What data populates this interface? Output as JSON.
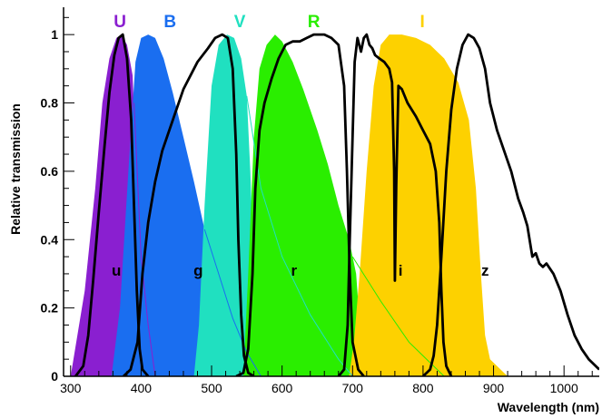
{
  "chart_data": {
    "type": "area",
    "title": "",
    "xlabel": "Wavelength (nm)",
    "ylabel": "Relative transmission",
    "xlim": [
      290,
      1050
    ],
    "ylim": [
      0,
      1.08
    ],
    "x_ticks": [
      300,
      400,
      500,
      600,
      700,
      800,
      900,
      1000
    ],
    "x_tick_labels": [
      "300",
      "400",
      "500",
      "600",
      "700",
      "800",
      "900",
      "1000"
    ],
    "y_ticks": [
      0,
      0.2,
      0.4,
      0.6,
      0.8,
      1
    ],
    "y_tick_labels": [
      "0",
      "0.2",
      "0.4",
      "0.6",
      "0.8",
      "1"
    ],
    "grid": false,
    "filled_series": [
      {
        "name": "U",
        "color": "#8a1fd0",
        "label_at": [
          370,
          1.04
        ],
        "points": [
          [
            300,
            0
          ],
          [
            320,
            0.25
          ],
          [
            335,
            0.55
          ],
          [
            345,
            0.8
          ],
          [
            355,
            0.93
          ],
          [
            365,
            0.99
          ],
          [
            372,
            1.0
          ],
          [
            380,
            0.97
          ],
          [
            388,
            0.88
          ],
          [
            393,
            0.6
          ],
          [
            397,
            0.3
          ],
          [
            402,
            0.08
          ],
          [
            408,
            0
          ]
        ],
        "tail": [
          [
            390,
            0.8
          ],
          [
            400,
            0.35
          ],
          [
            410,
            0.15
          ],
          [
            420,
            0
          ]
        ]
      },
      {
        "name": "B",
        "color": "#1a6ef0",
        "label_at": [
          441,
          1.04
        ],
        "points": [
          [
            358,
            0
          ],
          [
            370,
            0.2
          ],
          [
            382,
            0.6
          ],
          [
            392,
            0.92
          ],
          [
            400,
            0.99
          ],
          [
            410,
            1.0
          ],
          [
            420,
            0.99
          ],
          [
            432,
            0.93
          ],
          [
            445,
            0.83
          ],
          [
            460,
            0.7
          ],
          [
            475,
            0.57
          ],
          [
            490,
            0.43
          ],
          [
            500,
            0.33
          ],
          [
            505,
            0.2
          ],
          [
            510,
            0
          ]
        ],
        "tail": [
          [
            490,
            0.43
          ],
          [
            510,
            0.3
          ],
          [
            530,
            0.17
          ],
          [
            550,
            0.07
          ],
          [
            570,
            0
          ]
        ]
      },
      {
        "name": "V",
        "color": "#20e0c0",
        "label_at": [
          540,
          1.04
        ],
        "points": [
          [
            475,
            0
          ],
          [
            482,
            0.15
          ],
          [
            490,
            0.5
          ],
          [
            500,
            0.85
          ],
          [
            510,
            0.97
          ],
          [
            522,
            1.0
          ],
          [
            532,
            0.99
          ],
          [
            542,
            0.93
          ],
          [
            550,
            0.82
          ],
          [
            555,
            0.6
          ],
          [
            560,
            0.3
          ],
          [
            565,
            0.08
          ],
          [
            570,
            0
          ]
        ],
        "tail": [
          [
            550,
            0.82
          ],
          [
            570,
            0.55
          ],
          [
            600,
            0.35
          ],
          [
            640,
            0.18
          ],
          [
            680,
            0.05
          ],
          [
            700,
            0
          ]
        ]
      },
      {
        "name": "R",
        "color": "#2aee00",
        "label_at": [
          645,
          1.04
        ],
        "points": [
          [
            545,
            0
          ],
          [
            552,
            0.3
          ],
          [
            560,
            0.7
          ],
          [
            568,
            0.9
          ],
          [
            578,
            0.97
          ],
          [
            590,
            1.0
          ],
          [
            600,
            0.98
          ],
          [
            615,
            0.92
          ],
          [
            630,
            0.84
          ],
          [
            650,
            0.72
          ],
          [
            665,
            0.62
          ],
          [
            680,
            0.5
          ],
          [
            695,
            0.4
          ],
          [
            705,
            0.3
          ],
          [
            712,
            0.1
          ],
          [
            716,
            0
          ]
        ],
        "tail": [
          [
            700,
            0.35
          ],
          [
            740,
            0.22
          ],
          [
            780,
            0.1
          ],
          [
            820,
            0.02
          ],
          [
            830,
            0
          ]
        ]
      },
      {
        "name": "I",
        "color": "#fdd100",
        "label_at": [
          799,
          1.04
        ],
        "points": [
          [
            695,
            0
          ],
          [
            702,
            0.1
          ],
          [
            710,
            0.3
          ],
          [
            720,
            0.6
          ],
          [
            730,
            0.85
          ],
          [
            740,
            0.97
          ],
          [
            752,
            1.0
          ],
          [
            770,
            1.0
          ],
          [
            790,
            0.99
          ],
          [
            810,
            0.97
          ],
          [
            830,
            0.93
          ],
          [
            850,
            0.86
          ],
          [
            865,
            0.75
          ],
          [
            875,
            0.55
          ],
          [
            882,
            0.3
          ],
          [
            888,
            0.12
          ],
          [
            895,
            0.05
          ],
          [
            910,
            0.02
          ],
          [
            920,
            0
          ]
        ],
        "tail": []
      }
    ],
    "curve_series": [
      {
        "name": "u",
        "color": "#000000",
        "label_at": [
          365,
          0.31
        ],
        "points": [
          [
            307,
            0
          ],
          [
            318,
            0.03
          ],
          [
            325,
            0.12
          ],
          [
            332,
            0.28
          ],
          [
            340,
            0.48
          ],
          [
            348,
            0.67
          ],
          [
            355,
            0.83
          ],
          [
            362,
            0.94
          ],
          [
            368,
            0.99
          ],
          [
            374,
            1.0
          ],
          [
            380,
            0.93
          ],
          [
            386,
            0.75
          ],
          [
            390,
            0.5
          ],
          [
            394,
            0.25
          ],
          [
            398,
            0.08
          ],
          [
            402,
            0.02
          ],
          [
            410,
            0
          ]
        ]
      },
      {
        "name": "g",
        "color": "#000000",
        "label_at": [
          481,
          0.31
        ],
        "points": [
          [
            375,
            0
          ],
          [
            385,
            0.02
          ],
          [
            395,
            0.1
          ],
          [
            402,
            0.3
          ],
          [
            410,
            0.45
          ],
          [
            420,
            0.57
          ],
          [
            430,
            0.66
          ],
          [
            445,
            0.75
          ],
          [
            460,
            0.84
          ],
          [
            480,
            0.92
          ],
          [
            495,
            0.96
          ],
          [
            505,
            0.99
          ],
          [
            515,
            1.0
          ],
          [
            523,
            0.99
          ],
          [
            530,
            0.9
          ],
          [
            535,
            0.65
          ],
          [
            538,
            0.4
          ],
          [
            542,
            0.18
          ],
          [
            546,
            0.06
          ],
          [
            552,
            0.01
          ],
          [
            560,
            0
          ]
        ]
      },
      {
        "name": "r",
        "color": "#000000",
        "label_at": [
          617,
          0.31
        ],
        "points": [
          [
            535,
            0
          ],
          [
            545,
            0.01
          ],
          [
            552,
            0.08
          ],
          [
            558,
            0.3
          ],
          [
            562,
            0.55
          ],
          [
            568,
            0.72
          ],
          [
            575,
            0.8
          ],
          [
            585,
            0.87
          ],
          [
            595,
            0.93
          ],
          [
            605,
            0.97
          ],
          [
            615,
            0.98
          ],
          [
            625,
            0.98
          ],
          [
            635,
            0.99
          ],
          [
            645,
            1.0
          ],
          [
            660,
            1.0
          ],
          [
            670,
            0.99
          ],
          [
            680,
            0.97
          ],
          [
            688,
            0.85
          ],
          [
            692,
            0.6
          ],
          [
            696,
            0.3
          ],
          [
            700,
            0.1
          ],
          [
            708,
            0.02
          ],
          [
            716,
            0
          ]
        ]
      },
      {
        "name": "i",
        "color": "#000000",
        "label_at": [
          768,
          0.31
        ],
        "points": [
          [
            680,
            0
          ],
          [
            688,
            0.02
          ],
          [
            693,
            0.15
          ],
          [
            696,
            0.4
          ],
          [
            700,
            0.7
          ],
          [
            703,
            0.92
          ],
          [
            707,
            0.99
          ],
          [
            712,
            0.95
          ],
          [
            716,
            0.99
          ],
          [
            720,
            1.0
          ],
          [
            724,
            0.97
          ],
          [
            728,
            0.96
          ],
          [
            732,
            0.94
          ],
          [
            738,
            0.93
          ],
          [
            745,
            0.92
          ],
          [
            752,
            0.9
          ],
          [
            756,
            0.86
          ],
          [
            759,
            0.6
          ],
          [
            760,
            0.28
          ],
          [
            762,
            0.56
          ],
          [
            765,
            0.85
          ],
          [
            770,
            0.84
          ],
          [
            778,
            0.8
          ],
          [
            790,
            0.76
          ],
          [
            800,
            0.72
          ],
          [
            810,
            0.68
          ],
          [
            818,
            0.6
          ],
          [
            823,
            0.45
          ],
          [
            826,
            0.25
          ],
          [
            829,
            0.1
          ],
          [
            833,
            0.03
          ],
          [
            840,
            0
          ]
        ]
      },
      {
        "name": "z",
        "color": "#000000",
        "label_at": [
          888,
          0.31
        ],
        "points": [
          [
            800,
            0
          ],
          [
            810,
            0.02
          ],
          [
            815,
            0.06
          ],
          [
            820,
            0.15
          ],
          [
            826,
            0.35
          ],
          [
            833,
            0.6
          ],
          [
            840,
            0.78
          ],
          [
            848,
            0.9
          ],
          [
            856,
            0.97
          ],
          [
            864,
            1.0
          ],
          [
            872,
            0.99
          ],
          [
            880,
            0.96
          ],
          [
            888,
            0.9
          ],
          [
            895,
            0.8
          ],
          [
            905,
            0.72
          ],
          [
            915,
            0.66
          ],
          [
            925,
            0.6
          ],
          [
            935,
            0.52
          ],
          [
            942,
            0.48
          ],
          [
            948,
            0.44
          ],
          [
            955,
            0.35
          ],
          [
            960,
            0.36
          ],
          [
            965,
            0.33
          ],
          [
            970,
            0.32
          ],
          [
            975,
            0.33
          ],
          [
            985,
            0.3
          ],
          [
            995,
            0.25
          ],
          [
            1005,
            0.18
          ],
          [
            1015,
            0.12
          ],
          [
            1025,
            0.08
          ],
          [
            1035,
            0.05
          ],
          [
            1045,
            0.03
          ],
          [
            1050,
            0.02
          ]
        ]
      }
    ]
  }
}
